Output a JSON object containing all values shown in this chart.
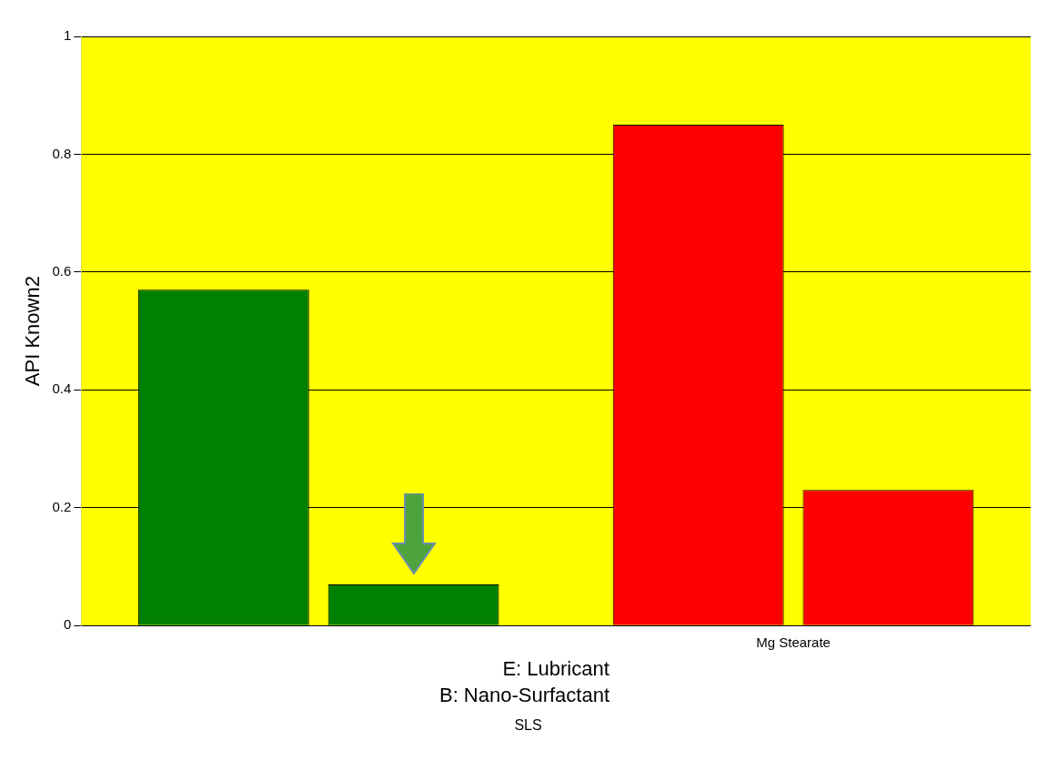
{
  "chart_data": {
    "type": "bar",
    "xlabel": "E: Lubricant",
    "ylabel": "API Known2",
    "legend_title": "B: Nano-Surfactant",
    "legend": "bottom",
    "categories": [
      null,
      "Mg Stearate"
    ],
    "series": [
      {
        "name": "SLS",
        "colors": [
          "#008000",
          "#ff0000"
        ],
        "values": [
          0.57,
          0.85
        ]
      },
      {
        "colors": [
          "#008000",
          "#ff0000"
        ],
        "values": [
          0.07,
          0.23
        ]
      }
    ],
    "ylim": [
      0,
      1
    ],
    "yticks": [
      0,
      0.2,
      0.4,
      0.6,
      0.8,
      1
    ],
    "grid": "y"
  }
}
